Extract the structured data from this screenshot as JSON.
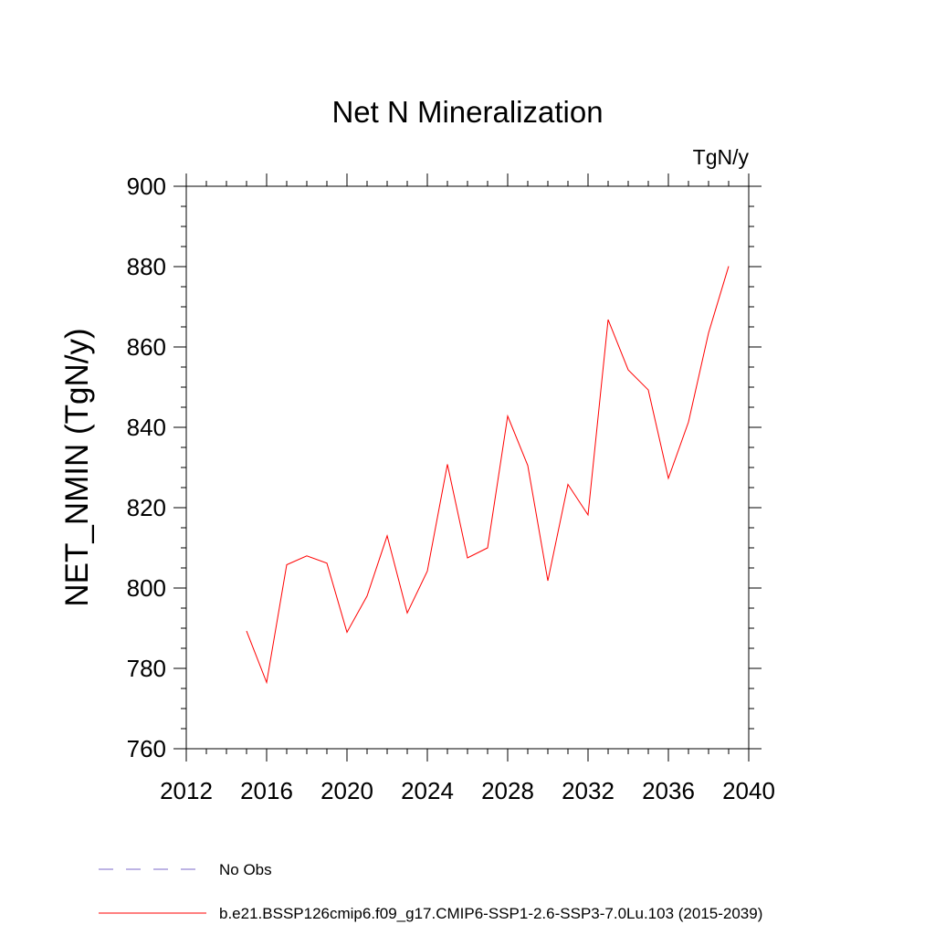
{
  "chart_data": {
    "type": "line",
    "title": "Net N Mineralization",
    "units": "TgN/y",
    "xlabel": "",
    "ylabel": "NET_NMIN  (TgN/y)",
    "xlim": [
      2012,
      2040
    ],
    "ylim": [
      760,
      900
    ],
    "xticks": [
      2012,
      2016,
      2020,
      2024,
      2028,
      2032,
      2036,
      2040
    ],
    "yticks": [
      760,
      780,
      800,
      820,
      840,
      860,
      880,
      900
    ],
    "xtick_labels": [
      "2012",
      "2016",
      "2020",
      "2024",
      "2028",
      "2032",
      "2036",
      "2040"
    ],
    "ytick_labels": [
      "760",
      "780",
      "800",
      "820",
      "840",
      "860",
      "880",
      "900"
    ],
    "grid": false,
    "legend_position": "bottom",
    "series": [
      {
        "name": "No Obs",
        "color": "#7b68c8",
        "style": "dashed",
        "x": [],
        "y": []
      },
      {
        "name": "b.e21.BSSP126cmip6.f09_g17.CMIP6-SSP1-2.6-SSP3-7.0Lu.103 (2015-2039)",
        "color": "#ff0000",
        "style": "solid",
        "x": [
          2015,
          2016,
          2017,
          2018,
          2019,
          2020,
          2021,
          2022,
          2023,
          2024,
          2025,
          2026,
          2027,
          2028,
          2029,
          2030,
          2031,
          2032,
          2033,
          2034,
          2035,
          2036,
          2037,
          2038,
          2039
        ],
        "y": [
          789.3,
          776.5,
          805.8,
          808.0,
          806.2,
          789.0,
          798.0,
          813.0,
          793.8,
          804.2,
          830.8,
          807.5,
          810.0,
          842.8,
          830.5,
          801.8,
          825.8,
          818.2,
          866.8,
          854.3,
          849.3,
          827.3,
          841.3,
          863.5,
          880.1
        ]
      }
    ]
  }
}
